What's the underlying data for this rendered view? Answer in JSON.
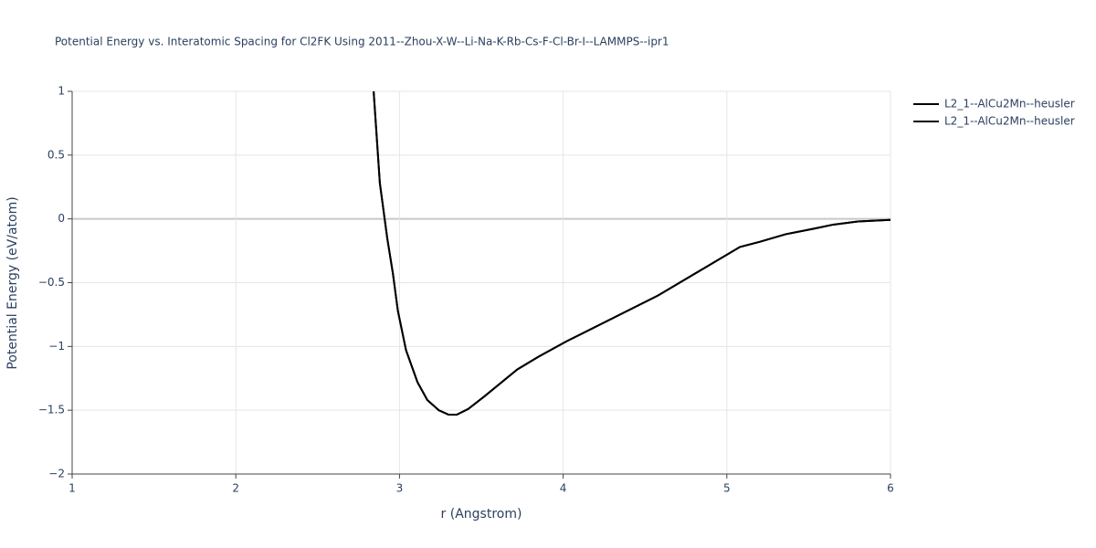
{
  "chart_data": {
    "type": "line",
    "title": "Potential Energy vs. Interatomic Spacing for Cl2FK Using 2011--Zhou-X-W--Li-Na-K-Rb-Cs-F-Cl-Br-I--LAMMPS--ipr1",
    "x_label": "r (Angstrom)",
    "y_label": "Potential Energy (eV/atom)",
    "x": [
      2.842,
      2.88,
      2.925,
      2.96,
      2.99,
      3.04,
      3.11,
      3.17,
      3.24,
      3.3,
      3.35,
      3.42,
      3.52,
      3.72,
      3.85,
      4.02,
      4.58,
      5.08,
      5.2,
      5.36,
      5.5,
      5.65,
      5.8,
      6.0
    ],
    "series": [
      {
        "name": "L2_1--AlCu2Mn--heusler",
        "color": "#000000",
        "values": [
          1,
          0.28,
          -0.15,
          -0.43,
          -0.72,
          -1.03,
          -1.28,
          -1.42,
          -1.5,
          -1.535,
          -1.535,
          -1.49,
          -1.39,
          -1.18,
          -1.08,
          -0.96,
          -0.6,
          -0.22,
          -0.18,
          -0.12,
          -0.085,
          -0.045,
          -0.02,
          -0.008
        ]
      },
      {
        "name": "L2_1--AlCu2Mn--heusler",
        "color": "#000000",
        "values": [
          1,
          0.28,
          -0.15,
          -0.43,
          -0.72,
          -1.03,
          -1.28,
          -1.42,
          -1.5,
          -1.535,
          -1.535,
          -1.49,
          -1.39,
          -1.18,
          -1.08,
          -0.96,
          -0.6,
          -0.22,
          -0.18,
          -0.12,
          -0.085,
          -0.045,
          -0.02,
          -0.008
        ]
      }
    ],
    "xlim": [
      1,
      6
    ],
    "xticks": [
      1,
      2,
      3,
      4,
      5,
      6
    ],
    "ylim": [
      -2,
      1
    ],
    "yticks": [
      1,
      0.5,
      0,
      {
        "value": -0.5,
        "label": "−0.5"
      },
      {
        "value": -1,
        "label": "−1"
      },
      {
        "value": -1.5,
        "label": "−1.5"
      },
      {
        "value": -2,
        "label": "−2"
      }
    ],
    "grid": true,
    "legend": "right"
  }
}
